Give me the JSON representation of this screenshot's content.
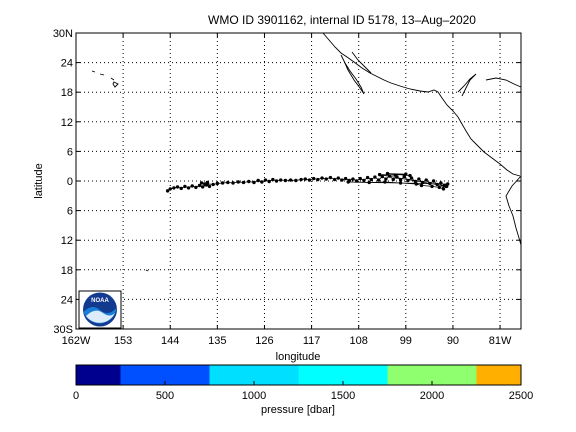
{
  "title": "WMO ID 3901162, internal ID 5178, 13–Aug–2020",
  "map": {
    "lon_range": [
      -162,
      -77
    ],
    "lat_range": [
      -30,
      30
    ],
    "x_ticks": [
      {
        "value": -162,
        "label": "162W"
      },
      {
        "value": -153,
        "label": "153"
      },
      {
        "value": -144,
        "label": "144"
      },
      {
        "value": -135,
        "label": "135"
      },
      {
        "value": -126,
        "label": "126"
      },
      {
        "value": -117,
        "label": "117"
      },
      {
        "value": -108,
        "label": "108"
      },
      {
        "value": -99,
        "label": "99"
      },
      {
        "value": -90,
        "label": "90"
      },
      {
        "value": -81,
        "label": "81W"
      }
    ],
    "y_ticks": [
      {
        "value": 30,
        "label": "30N"
      },
      {
        "value": 24,
        "label": "24"
      },
      {
        "value": 18,
        "label": "18"
      },
      {
        "value": 12,
        "label": "12"
      },
      {
        "value": 6,
        "label": "6"
      },
      {
        "value": 0,
        "label": "0"
      },
      {
        "value": -6,
        "label": "6"
      },
      {
        "value": -12,
        "label": "12"
      },
      {
        "value": -18,
        "label": "18"
      },
      {
        "value": -24,
        "label": "24"
      },
      {
        "value": -30,
        "label": "30S"
      }
    ],
    "xlabel": "longitude",
    "ylabel": "latitude",
    "grid": true,
    "logo_text": "NOAA",
    "logo_position": "bottom-left"
  },
  "chart_data": {
    "type": "scatter",
    "title": "WMO ID 3901162, internal ID 5178, 13–Aug–2020",
    "xlabel": "longitude",
    "ylabel": "latitude",
    "xlim": [
      -162,
      -77
    ],
    "ylim": [
      -30,
      30
    ],
    "series": [
      {
        "color": "#000000",
        "points": [
          [
            -144.5,
            -2.0
          ],
          [
            -144.0,
            -1.6
          ],
          [
            -143.3,
            -1.4
          ],
          [
            -142.6,
            -1.2
          ],
          [
            -141.9,
            -1.5
          ],
          [
            -141.2,
            -1.1
          ],
          [
            -140.5,
            -1.4
          ],
          [
            -139.8,
            -1.0
          ],
          [
            -139.1,
            -1.3
          ],
          [
            -138.4,
            -0.9
          ],
          [
            -137.8,
            -1.2
          ],
          [
            -137.1,
            -0.8
          ],
          [
            -136.5,
            -1.1
          ],
          [
            -136.9,
            -0.3
          ],
          [
            -137.4,
            -0.6
          ],
          [
            -138.0,
            -0.4
          ],
          [
            -135.8,
            -0.7
          ],
          [
            -135.0,
            -0.5
          ],
          [
            -134.0,
            -0.4
          ],
          [
            -133.0,
            -0.3
          ],
          [
            -132.0,
            -0.4
          ],
          [
            -131.0,
            -0.2
          ],
          [
            -130.0,
            -0.3
          ],
          [
            -129.0,
            -0.1
          ],
          [
            -128.0,
            -0.3
          ],
          [
            -127.2,
            0.1
          ],
          [
            -126.5,
            -0.2
          ],
          [
            -125.8,
            0.2
          ],
          [
            -125.1,
            -0.1
          ],
          [
            -124.4,
            0.3
          ],
          [
            -123.7,
            0.0
          ],
          [
            -122.9,
            0.2
          ],
          [
            -122.0,
            0.1
          ],
          [
            -121.0,
            0.2
          ],
          [
            -120.0,
            0.1
          ],
          [
            -119.0,
            0.3
          ],
          [
            -118.2,
            0.4
          ],
          [
            -117.4,
            0.2
          ],
          [
            -116.6,
            0.5
          ],
          [
            -115.8,
            0.3
          ],
          [
            -115.0,
            0.6
          ],
          [
            -114.2,
            0.4
          ],
          [
            -113.4,
            0.7
          ],
          [
            -112.6,
            0.3
          ],
          [
            -111.9,
            0.6
          ],
          [
            -111.2,
            0.2
          ],
          [
            -110.5,
            0.5
          ],
          [
            -109.8,
            0.1
          ],
          [
            -109.1,
            0.4
          ],
          [
            -108.4,
            0.0
          ],
          [
            -107.7,
            0.5
          ],
          [
            -107.0,
            0.1
          ],
          [
            -106.3,
            0.7
          ],
          [
            -105.6,
            0.3
          ],
          [
            -104.9,
            0.8
          ],
          [
            -104.2,
            0.2
          ],
          [
            -103.5,
            0.9
          ],
          [
            -102.8,
            0.4
          ],
          [
            -102.1,
            1.0
          ],
          [
            -101.4,
            0.3
          ],
          [
            -100.7,
            0.8
          ],
          [
            -100.0,
            0.2
          ],
          [
            -99.3,
            0.9
          ],
          [
            -98.6,
            0.1
          ],
          [
            -97.9,
            0.6
          ],
          [
            -97.2,
            -0.1
          ],
          [
            -96.5,
            0.4
          ],
          [
            -95.8,
            -0.3
          ],
          [
            -95.1,
            0.2
          ],
          [
            -94.4,
            -0.5
          ],
          [
            -93.7,
            0.0
          ],
          [
            -93.0,
            -0.7
          ],
          [
            -92.3,
            -0.4
          ],
          [
            -91.6,
            -0.9
          ],
          [
            -91.0,
            -0.6
          ],
          [
            -110.0,
            -0.2
          ],
          [
            -106.0,
            -0.3
          ],
          [
            -103.0,
            -0.2
          ],
          [
            -100.0,
            -0.4
          ],
          [
            -97.0,
            -0.6
          ],
          [
            -96.0,
            -0.9
          ],
          [
            -94.0,
            -1.1
          ],
          [
            -92.6,
            -1.3
          ],
          [
            -91.8,
            -1.6
          ],
          [
            -91.2,
            -1.1
          ],
          [
            -104.0,
            1.3
          ],
          [
            -101.0,
            1.2
          ],
          [
            -99.0,
            1.4
          ],
          [
            -102.5,
            1.5
          ],
          [
            -98.2,
            1.1
          ]
        ]
      }
    ]
  },
  "colorbar": {
    "label": "pressure [dbar]",
    "range": [
      0,
      2500
    ],
    "ticks": [
      {
        "value": 0,
        "label": "0"
      },
      {
        "value": 500,
        "label": "500"
      },
      {
        "value": 1000,
        "label": "1000"
      },
      {
        "value": 1500,
        "label": "1500"
      },
      {
        "value": 2000,
        "label": "2000"
      },
      {
        "value": 2500,
        "label": "2500"
      }
    ],
    "bands": [
      {
        "from": 0,
        "to": 250,
        "color": "#00008f"
      },
      {
        "from": 250,
        "to": 750,
        "color": "#0050ff"
      },
      {
        "from": 750,
        "to": 1250,
        "color": "#00dfff"
      },
      {
        "from": 1250,
        "to": 1750,
        "color": "#00ffff"
      },
      {
        "from": 1750,
        "to": 2250,
        "color": "#8fff70"
      },
      {
        "from": 2250,
        "to": 2500,
        "color": "#ffaf00"
      }
    ]
  }
}
